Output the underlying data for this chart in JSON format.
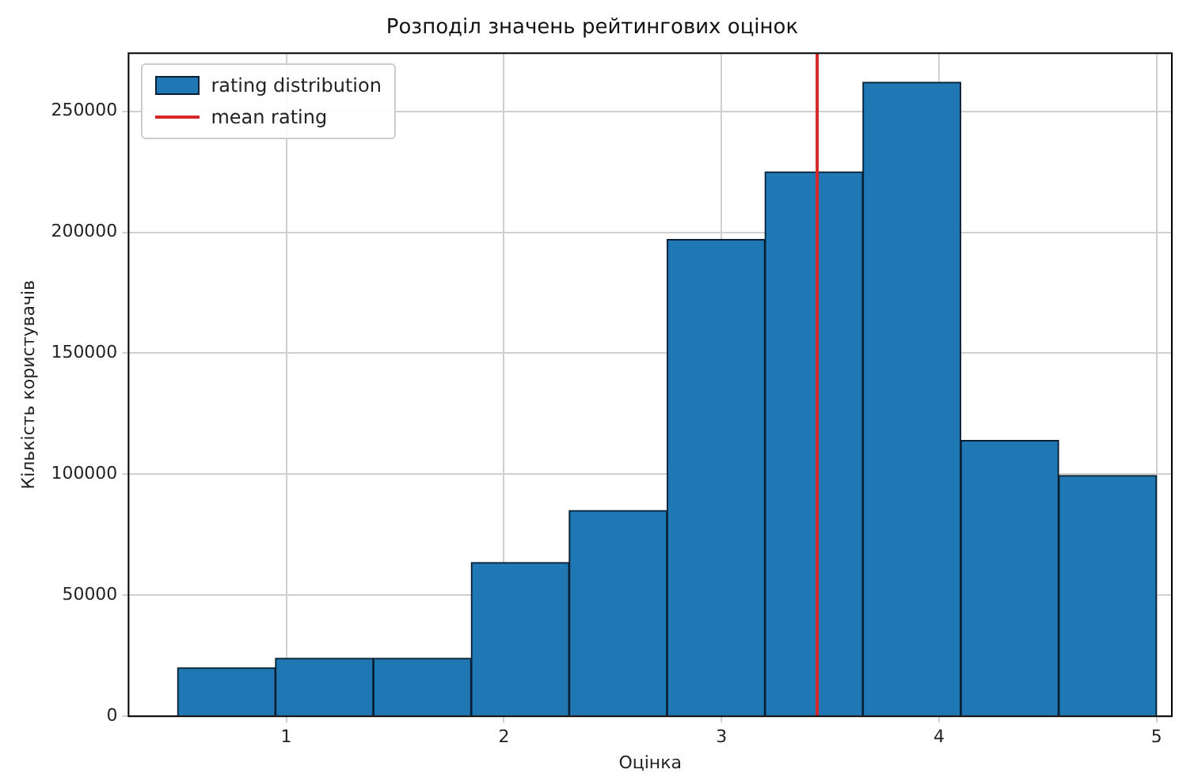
{
  "chart_data": {
    "type": "histogram",
    "title": "Розподіл значень рейтингових оцінок",
    "xlabel": "Оцінка",
    "ylabel": "Кількість користувачів",
    "bins": [
      0.5,
      0.95,
      1.4,
      1.85,
      2.3,
      2.75,
      3.2,
      3.65,
      4.1,
      4.55,
      5.0
    ],
    "series": [
      {
        "name": "rating distribution",
        "color": "#1f77b4",
        "values": [
          20000,
          24000,
          24000,
          63500,
          85000,
          197000,
          225000,
          262000,
          114000,
          99500
        ]
      },
      {
        "type": "line",
        "name": "mean rating",
        "color": "#d62728",
        "x": [
          3.44,
          3.44
        ],
        "values": [
          0,
          274000
        ]
      }
    ],
    "xlim": [
      0.275,
      5.07
    ],
    "xticks": [
      1,
      2,
      3,
      4,
      5
    ],
    "ylim": [
      0,
      274000
    ],
    "yticks": [
      0,
      50000,
      100000,
      150000,
      200000,
      250000
    ],
    "grid": true,
    "legend": "top left"
  }
}
